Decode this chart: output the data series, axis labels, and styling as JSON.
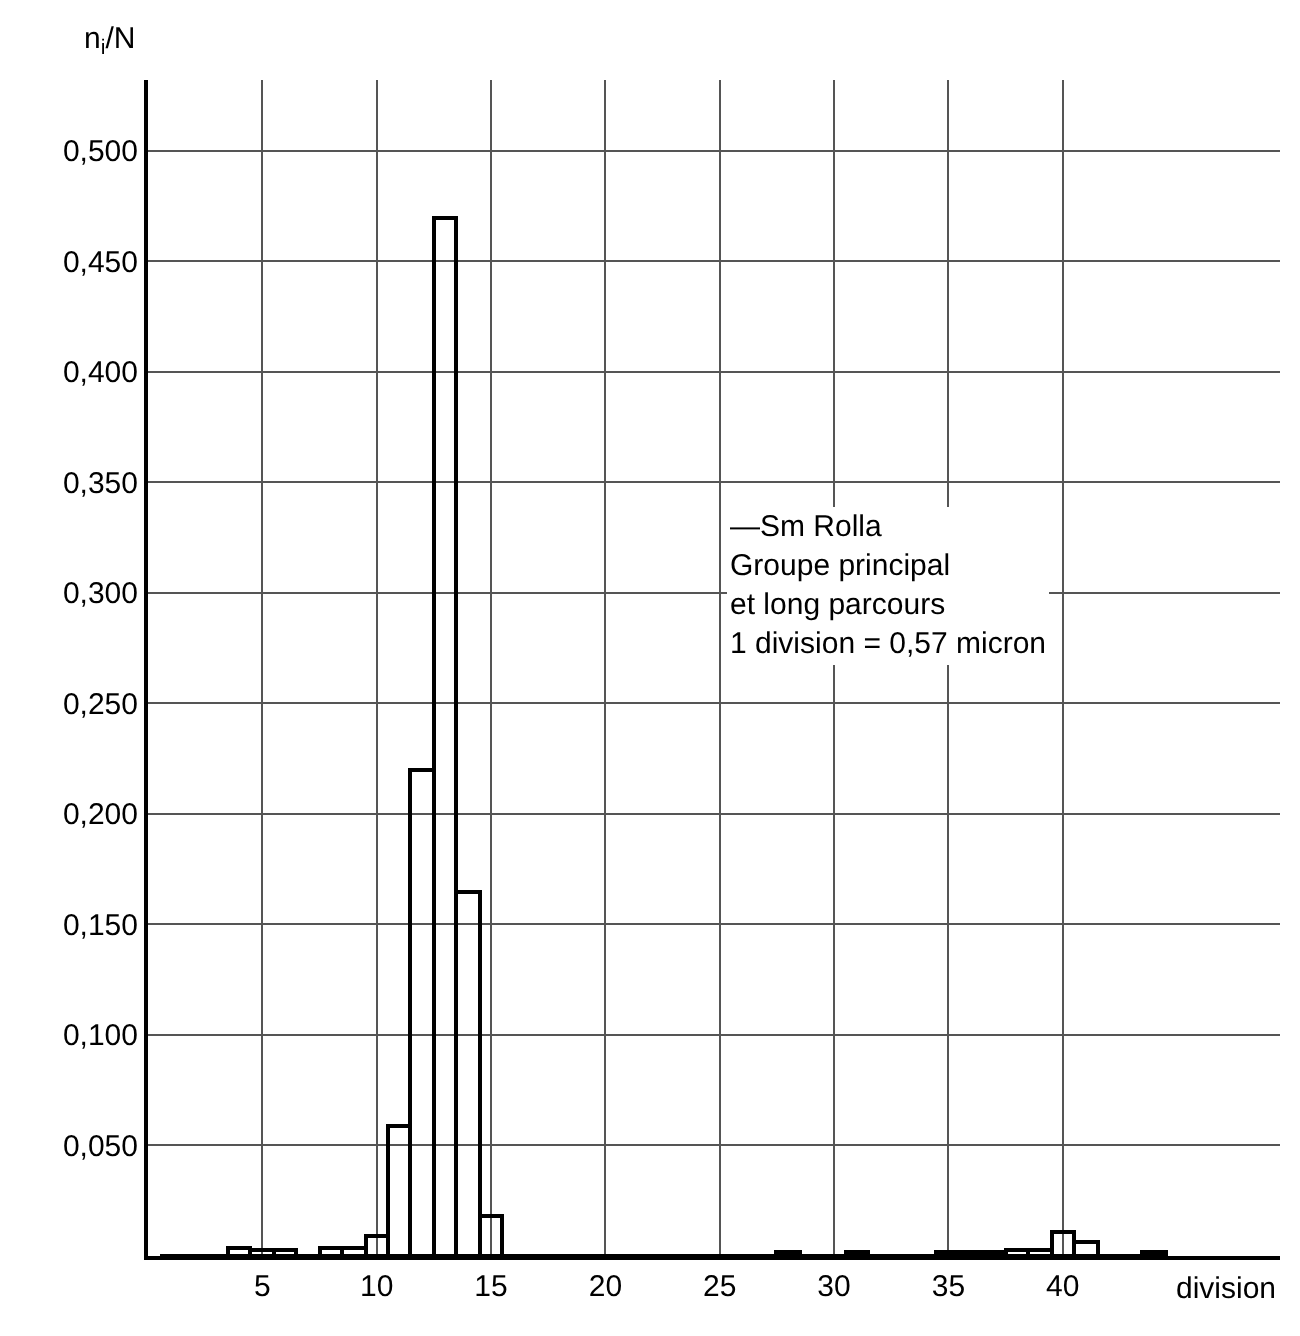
{
  "chart_data": {
    "type": "histogram",
    "xlabel": "division",
    "ylabel": "n$_{i}$/N",
    "bins": [
      0.5,
      1.5,
      2.5,
      3.5,
      4.5,
      5.5,
      6.5,
      7.5,
      8.5,
      9.5,
      10.5,
      11.5,
      12.5,
      13.5,
      14.5,
      15.5,
      16.5,
      17.5,
      18.5,
      19.5,
      20.5,
      21.5,
      22.5,
      23.5,
      24.5,
      25.5,
      26.5,
      27.5,
      28.5,
      29.5,
      30.5,
      31.5,
      32.5,
      33.5,
      34.5,
      35.5,
      36.5,
      37.5,
      38.5,
      39.5,
      40.5,
      41.5,
      42.5,
      43.5,
      44.5
    ],
    "values": [
      0,
      0,
      0,
      0.004,
      0.003,
      0.003,
      0,
      0.004,
      0.004,
      0.009,
      0.059,
      0.22,
      0.47,
      0.165,
      0.018,
      0,
      0,
      0,
      0,
      0,
      0,
      0,
      0,
      0,
      0,
      0,
      0,
      0.002,
      0,
      0,
      0.002,
      0,
      0,
      0,
      0.002,
      0.002,
      0.002,
      0.003,
      0.003,
      0.011,
      0.006,
      0,
      0,
      0.002
    ],
    "color": "#000000",
    "xlim": [
      0,
      49.5
    ],
    "xticks": [
      5,
      10,
      15,
      20,
      25,
      30,
      35,
      40
    ],
    "ylim": [
      0,
      0.532
    ],
    "yticks": [
      {
        "value": 0.05,
        "label": "0,050"
      },
      {
        "value": 0.1,
        "label": "0,100"
      },
      {
        "value": 0.15,
        "label": "0,150"
      },
      {
        "value": 0.2,
        "label": "0,200"
      },
      {
        "value": 0.25,
        "label": "0,250"
      },
      {
        "value": 0.3,
        "label": "0,300"
      },
      {
        "value": 0.35,
        "label": "0,350"
      },
      {
        "value": 0.4,
        "label": "0,400"
      },
      {
        "value": 0.45,
        "label": "0,450"
      },
      {
        "value": 0.5,
        "label": "0,500"
      }
    ],
    "grid": true,
    "annotations": [
      "—Sm Rolla\nGroupe principal\net long parcours\n1 division = 0,57 micron"
    ]
  }
}
